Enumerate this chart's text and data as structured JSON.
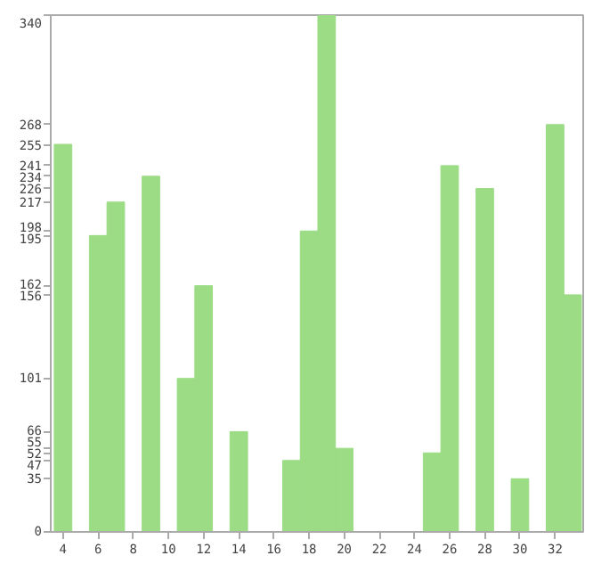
{
  "chart_data": {
    "type": "bar",
    "x": [
      4,
      6,
      7,
      9,
      11,
      12,
      14,
      16,
      17,
      18,
      19,
      20,
      21,
      22,
      23,
      24,
      25,
      26,
      28,
      30,
      32,
      33
    ],
    "values": [
      255,
      195,
      217,
      234,
      101,
      162,
      66,
      0,
      47,
      198,
      340,
      55,
      0,
      0,
      0,
      0,
      52,
      241,
      226,
      35,
      268,
      156
    ],
    "color": "#9bdc85",
    "xlim": [
      3.3,
      33.6
    ],
    "xticks": [
      4,
      6,
      8,
      10,
      12,
      14,
      16,
      18,
      20,
      22,
      24,
      26,
      28,
      30,
      32
    ],
    "ylim": [
      0,
      340
    ],
    "yticks": [
      0,
      35,
      47,
      52,
      55,
      66,
      101,
      156,
      162,
      195,
      198,
      217,
      226,
      234,
      241,
      255,
      268,
      340
    ],
    "grid": false
  }
}
